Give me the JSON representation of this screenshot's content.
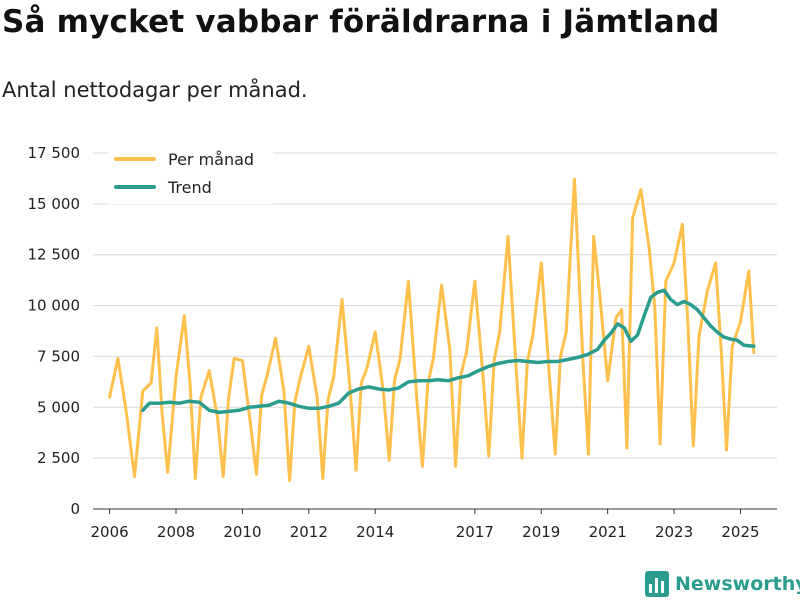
{
  "title": "Så mycket vabbar föräldrarna i Jämtland",
  "subtitle": "Antal nettodagar per månad.",
  "brand": {
    "name": "Newsworthy",
    "icon": "bar-chart-logo-icon",
    "color": "#2a9d8f"
  },
  "chart_data": {
    "type": "line",
    "title": "Så mycket vabbar föräldrarna i Jämtland",
    "subtitle": "Antal nettodagar per månad.",
    "xlabel": "",
    "ylabel": "",
    "ylim": [
      0,
      17500
    ],
    "yticks": [
      0,
      2500,
      5000,
      7500,
      10000,
      12500,
      15000,
      17500
    ],
    "ytick_labels": [
      "0",
      "2 500",
      "5 000",
      "7 500",
      "10 000",
      "12 500",
      "15 000",
      "17 500"
    ],
    "xlim": [
      2005.5,
      2026.1
    ],
    "xticks": [
      2006,
      2008,
      2010,
      2012,
      2014,
      2017,
      2019,
      2021,
      2023,
      2025
    ],
    "xtick_labels": [
      "2006",
      "2008",
      "2010",
      "2012",
      "2014",
      "2017",
      "2019",
      "2021",
      "2023",
      "2025"
    ],
    "grid": true,
    "legend_position": "top-left",
    "series": [
      {
        "name": "Per månad",
        "color": "#ffc04d",
        "x": [
          2006.0,
          2006.25,
          2006.5,
          2006.75,
          2007.0,
          2007.25,
          2007.42,
          2007.58,
          2007.75,
          2008.0,
          2008.25,
          2008.42,
          2008.58,
          2008.75,
          2009.0,
          2009.25,
          2009.42,
          2009.58,
          2009.75,
          2010.0,
          2010.25,
          2010.42,
          2010.58,
          2010.75,
          2011.0,
          2011.25,
          2011.42,
          2011.58,
          2011.75,
          2012.0,
          2012.25,
          2012.42,
          2012.58,
          2012.75,
          2013.0,
          2013.25,
          2013.42,
          2013.58,
          2013.75,
          2014.0,
          2014.25,
          2014.42,
          2014.58,
          2014.75,
          2015.0,
          2015.25,
          2015.42,
          2015.58,
          2015.75,
          2016.0,
          2016.25,
          2016.42,
          2016.58,
          2016.75,
          2017.0,
          2017.25,
          2017.42,
          2017.58,
          2017.75,
          2018.0,
          2018.25,
          2018.42,
          2018.58,
          2018.75,
          2019.0,
          2019.25,
          2019.42,
          2019.58,
          2019.75,
          2020.0,
          2020.25,
          2020.42,
          2020.58,
          2020.75,
          2021.0,
          2021.25,
          2021.42,
          2021.58,
          2021.75,
          2022.0,
          2022.25,
          2022.42,
          2022.58,
          2022.75,
          2023.0,
          2023.25,
          2023.42,
          2023.58,
          2023.75,
          2024.0,
          2024.25,
          2024.42,
          2024.58,
          2024.75,
          2025.0,
          2025.25,
          2025.4
        ],
        "y": [
          5500,
          7400,
          4800,
          1600,
          5800,
          6200,
          8900,
          4700,
          1800,
          6500,
          9500,
          6200,
          1500,
          5500,
          6800,
          4500,
          1600,
          5400,
          7400,
          7300,
          4100,
          1700,
          5600,
          6600,
          8400,
          5800,
          1400,
          5300,
          6500,
          8000,
          5500,
          1500,
          5400,
          6500,
          10300,
          5800,
          1900,
          6200,
          6900,
          8700,
          5700,
          2400,
          6300,
          7400,
          11200,
          5500,
          2100,
          6100,
          7400,
          11000,
          7800,
          2100,
          6600,
          7700,
          11200,
          6500,
          2600,
          7300,
          8700,
          13400,
          6800,
          2500,
          7200,
          8600,
          12100,
          6400,
          2700,
          7500,
          8700,
          16200,
          7400,
          2700,
          13400,
          10700,
          6300,
          9400,
          9800,
          3000,
          14300,
          15700,
          12800,
          9900,
          3200,
          11200,
          12100,
          14000,
          9000,
          3100,
          8500,
          10700,
          12100,
          7800,
          2900,
          8000,
          9200,
          11700,
          7700
        ]
      },
      {
        "name": "Trend",
        "color": "#2a9d8f",
        "x": [
          2007.0,
          2007.2,
          2007.5,
          2007.8,
          2008.1,
          2008.4,
          2008.7,
          2009.0,
          2009.3,
          2009.6,
          2009.9,
          2010.2,
          2010.5,
          2010.8,
          2011.1,
          2011.4,
          2011.7,
          2012.0,
          2012.3,
          2012.6,
          2012.9,
          2013.2,
          2013.5,
          2013.8,
          2014.1,
          2014.4,
          2014.7,
          2015.0,
          2015.3,
          2015.6,
          2015.9,
          2016.2,
          2016.5,
          2016.8,
          2017.1,
          2017.4,
          2017.7,
          2018.0,
          2018.3,
          2018.6,
          2018.9,
          2019.2,
          2019.5,
          2019.8,
          2020.1,
          2020.4,
          2020.7,
          2020.9,
          2021.1,
          2021.3,
          2021.5,
          2021.7,
          2021.9,
          2022.1,
          2022.3,
          2022.5,
          2022.7,
          2022.9,
          2023.1,
          2023.3,
          2023.5,
          2023.7,
          2023.9,
          2024.1,
          2024.3,
          2024.5,
          2024.7,
          2024.9,
          2025.1,
          2025.4
        ],
        "y": [
          4850,
          5200,
          5200,
          5250,
          5200,
          5300,
          5250,
          4850,
          4750,
          4800,
          4850,
          5000,
          5050,
          5100,
          5300,
          5200,
          5050,
          4950,
          4950,
          5050,
          5200,
          5700,
          5900,
          6000,
          5900,
          5850,
          5950,
          6250,
          6300,
          6300,
          6350,
          6300,
          6450,
          6550,
          6800,
          7000,
          7150,
          7250,
          7300,
          7250,
          7200,
          7250,
          7250,
          7350,
          7450,
          7600,
          7850,
          8300,
          8650,
          9100,
          8900,
          8250,
          8550,
          9500,
          10400,
          10650,
          10750,
          10300,
          10050,
          10200,
          10050,
          9800,
          9400,
          9000,
          8700,
          8450,
          8350,
          8300,
          8050,
          8000
        ]
      }
    ]
  }
}
